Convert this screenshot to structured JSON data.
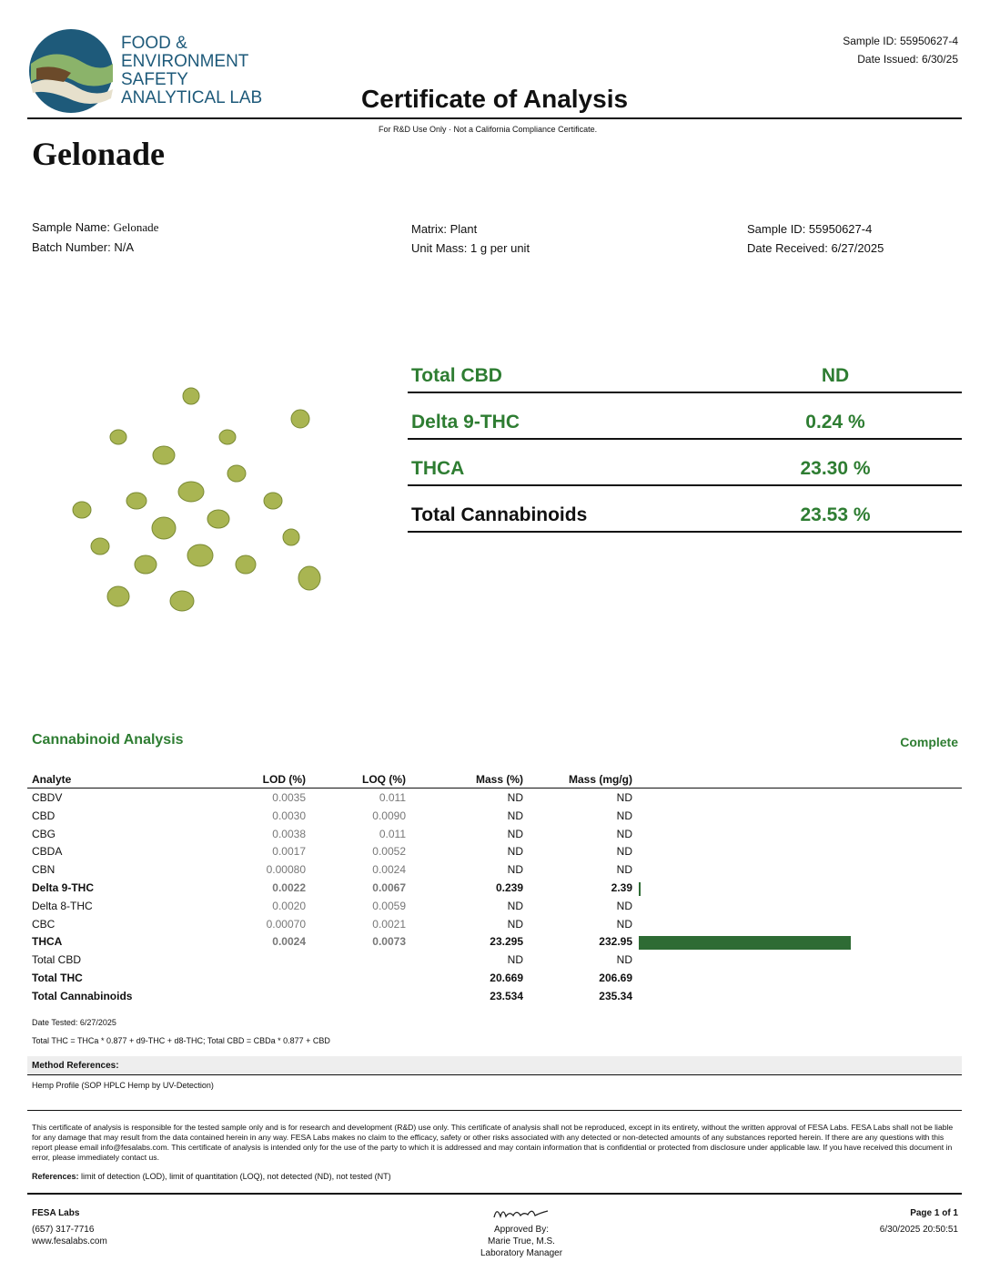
{
  "header": {
    "logo_lines": [
      "FOOD &",
      "ENVIRONMENT",
      "SAFETY",
      "ANALYTICAL LAB"
    ],
    "title": "Certificate of Analysis",
    "sample_id": "Sample ID: 55950627-4",
    "date_issued": "Date Issued: 6/30/25",
    "notice": "For R&D Use Only · Not a California Compliance Certificate."
  },
  "product_name": "Gelonade",
  "info": [
    {
      "label": "Sample Name: ",
      "value": "Gelonade"
    },
    {
      "label": "Batch Number: ",
      "value": "N/A"
    },
    {
      "label": "Matrix: ",
      "value": "Plant"
    },
    {
      "label": "Unit Mass: ",
      "value": "1 g per unit"
    },
    {
      "label": "Sample ID: ",
      "value": "55950627-4"
    },
    {
      "label": "Date Received: ",
      "value": "6/27/2025"
    }
  ],
  "summary": [
    {
      "label": "Total CBD",
      "value": "ND"
    },
    {
      "label": "Delta 9-THC",
      "value": "0.24 %"
    },
    {
      "label": "THCA",
      "value": "23.30 %"
    },
    {
      "label": "Total Cannabinoids",
      "value": "23.53 %"
    }
  ],
  "analysis": {
    "title": "Cannabinoid Analysis",
    "status": "Complete",
    "headers": [
      "Analyte",
      "LOD (%)",
      "LOQ (%)",
      "Mass (%)",
      "Mass (mg/g)"
    ],
    "rows": [
      {
        "analyte": "CBDV",
        "lod": "0.0035",
        "loq": "0.011",
        "mass_pct": "ND",
        "mass_mg_g": "ND"
      },
      {
        "analyte": "CBD",
        "lod": "0.0030",
        "loq": "0.0090",
        "mass_pct": "ND",
        "mass_mg_g": "ND"
      },
      {
        "analyte": "CBG",
        "lod": "0.0038",
        "loq": "0.011",
        "mass_pct": "ND",
        "mass_mg_g": "ND"
      },
      {
        "analyte": "CBDA",
        "lod": "0.0017",
        "loq": "0.0052",
        "mass_pct": "ND",
        "mass_mg_g": "ND"
      },
      {
        "analyte": "CBN",
        "lod": "0.00080",
        "loq": "0.0024",
        "mass_pct": "ND",
        "mass_mg_g": "ND"
      },
      {
        "analyte": "Delta 9-THC",
        "lod": "0.0022",
        "loq": "0.0067",
        "mass_pct": "0.239",
        "mass_mg_g": 2.39
      },
      {
        "analyte": "Delta 8-THC",
        "lod": "0.0020",
        "loq": "0.0059",
        "mass_pct": "ND",
        "mass_mg_g": "ND"
      },
      {
        "analyte": "CBC",
        "lod": "0.00070",
        "loq": "0.0021",
        "mass_pct": "ND",
        "mass_mg_g": "ND"
      },
      {
        "analyte": "THCA",
        "lod": "0.0024",
        "loq": "0.0073",
        "mass_pct": "23.295",
        "mass_mg_g": 232.95
      },
      {
        "analyte": "Total CBD",
        "mass_pct": "ND",
        "mass_mg_g": "ND"
      },
      {
        "analyte": "Total THC",
        "mass_pct": "20.669",
        "mass_mg_g": 206.69
      },
      {
        "analyte": "Total Cannabinoids",
        "mass_pct": "23.534",
        "mass_mg_g": 235.34
      }
    ],
    "date_tested": "Date Tested: 6/27/2025",
    "formula": "Total THC = THCa * 0.877 + d9-THC + d8-THC; Total CBD = CBDa * 0.877 + CBD",
    "method_title": "Method References:",
    "method": "Hemp Profile (SOP HPLC Hemp by UV-Detection)"
  },
  "disclaimer": "This certificate of analysis is responsible for the tested sample only and is for research and development (R&D) use only. This certificate of analysis shall not be reproduced, except in its entirety, without the written approval of FESA Labs. FESA Labs shall not be liable for any damage that may result from the data contained herein in any way. FESA Labs makes no claim to the efficacy, safety or other risks associated with any detected or non-detected amounts of any substances reported herein. If there are any questions with this report please email info@fesalabs.com. This certificate of analysis is intended only for the use of the party to which it is addressed and may contain information that is confidential or protected from disclosure under applicable law. If you have received this document in error, please immediately contact us.",
  "references": {
    "label": "References:",
    "text": " limit of detection (LOD), limit of quantitation (LOQ), not detected (ND), not tested (NT)"
  },
  "footer": {
    "lab": "FESA Labs",
    "phone": "(657) 317-7716",
    "website": "www.fesalabs.com",
    "approved_lines": [
      "Approved By:",
      "Marie True, M.S.",
      "Laboratory Manager"
    ],
    "page": "Page 1 of 1",
    "timestamp": "6/30/2025 20:50:51"
  }
}
